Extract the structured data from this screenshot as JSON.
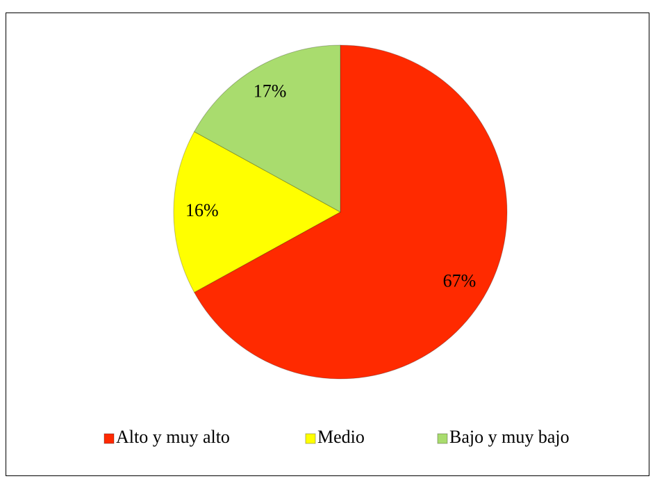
{
  "chart_data": {
    "type": "pie",
    "categories": [
      "Alto y muy alto",
      "Medio",
      "Bajo y muy bajo"
    ],
    "values": [
      67,
      16,
      17
    ],
    "value_labels": [
      "67%",
      "16%",
      "17%"
    ],
    "colors": [
      "#ff2a00",
      "#ffff00",
      "#a9dc6e"
    ],
    "legend": "bottom"
  }
}
